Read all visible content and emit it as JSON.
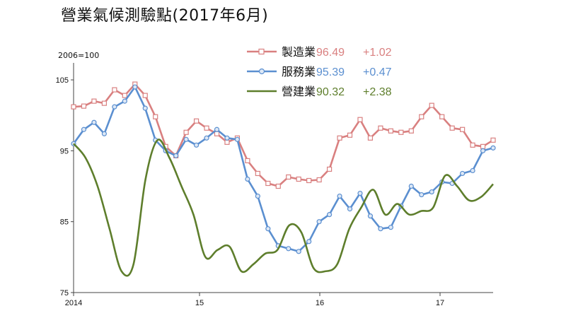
{
  "title": "營業氣候測驗點(2017年6月)",
  "unit_label": "2006=100",
  "colors": {
    "manufacturing": "#d98080",
    "services": "#5b8fd0",
    "construction": "#5e7e2c"
  },
  "chart_data": {
    "type": "line",
    "x_tick_labels": [
      "2014",
      "15",
      "16",
      "17"
    ],
    "ylim": [
      75,
      106
    ],
    "y_ticks": [
      75,
      85,
      95,
      105
    ],
    "grid": false,
    "legend_position": "top-right",
    "series": [
      {
        "name": "製造業",
        "value_label": "96.49",
        "change_label": "+1.02",
        "marker": "square",
        "values": [
          101.2,
          101.3,
          102.0,
          101.7,
          103.6,
          102.8,
          104.4,
          102.8,
          99.8,
          95.6,
          94.3,
          97.6,
          99.2,
          98.2,
          97.4,
          96.2,
          96.8,
          93.6,
          91.8,
          90.4,
          90.0,
          91.3,
          91.0,
          90.8,
          90.9,
          92.4,
          96.8,
          97.2,
          99.4,
          96.8,
          98.2,
          97.8,
          97.6,
          97.8,
          99.8,
          101.4,
          99.8,
          98.2,
          98.0,
          95.8,
          95.6,
          96.5
        ]
      },
      {
        "name": "服務業",
        "value_label": "95.39",
        "change_label": "+0.47",
        "marker": "circle",
        "values": [
          96.0,
          98.0,
          99.0,
          97.4,
          101.2,
          102.0,
          104.0,
          101.0,
          96.5,
          95.0,
          94.3,
          96.6,
          95.8,
          96.8,
          98.0,
          96.8,
          96.6,
          91.0,
          88.6,
          84.0,
          81.6,
          81.2,
          80.8,
          82.2,
          85.0,
          86.0,
          88.6,
          86.8,
          89.0,
          85.8,
          84.0,
          84.2,
          87.2,
          90.0,
          88.8,
          89.2,
          90.6,
          90.4,
          91.8,
          92.2,
          95.0,
          95.4
        ]
      },
      {
        "name": "營建業",
        "value_label": "90.32",
        "change_label": "+2.38",
        "marker": "none",
        "values": [
          96.0,
          94.0,
          90.0,
          84.0,
          78.0,
          79.0,
          91.0,
          96.5,
          94.0,
          90.0,
          86.0,
          80.0,
          81.0,
          81.5,
          78.0,
          79.0,
          80.5,
          81.0,
          84.5,
          83.5,
          78.5,
          78.0,
          79.0,
          84.0,
          87.0,
          89.5,
          86.0,
          87.5,
          86.0,
          86.5,
          87.0,
          91.5,
          90.0,
          88.0,
          88.5,
          90.3
        ]
      }
    ]
  }
}
